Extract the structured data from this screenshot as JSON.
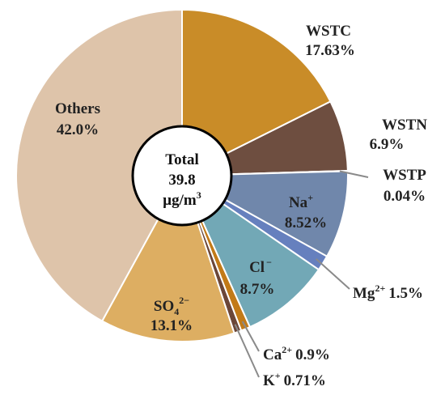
{
  "chart_data": {
    "type": "pie",
    "title": "",
    "center_label": {
      "line1": "Total",
      "line2": "39.8",
      "line3_base": "μg/m",
      "line3_sup": "3"
    },
    "slices": [
      {
        "key": "wstc",
        "label_base": "WSTC",
        "label_sup": "",
        "value_label": "17.63%",
        "value": 17.63,
        "color": "#C98C28"
      },
      {
        "key": "wstn",
        "label_base": "WSTN",
        "label_sup": "",
        "value_label": "6.9%",
        "value": 6.9,
        "color": "#6E4E40"
      },
      {
        "key": "wstp",
        "label_base": "WSTP",
        "label_sup": "",
        "value_label": "0.04%",
        "value": 0.04,
        "color": "#9A9A9A"
      },
      {
        "key": "na",
        "label_base": "Na",
        "label_sup": "+",
        "value_label": "8.52%",
        "value": 8.52,
        "color": "#7087AB"
      },
      {
        "key": "mg",
        "label_base": "Mg",
        "label_sup": "2+",
        "value_label": "1.5%",
        "value": 1.5,
        "color": "#6680BE"
      },
      {
        "key": "cl",
        "label_base": "Cl",
        "label_sup": "−",
        "value_label": "8.7%",
        "value": 8.7,
        "color": "#72A8B6"
      },
      {
        "key": "ca",
        "label_base": "Ca",
        "label_sup": "2+",
        "value_label": "0.9%",
        "value": 0.9,
        "color": "#C27A18"
      },
      {
        "key": "k",
        "label_base": "K",
        "label_sup": "+",
        "value_label": "0.71%",
        "value": 0.71,
        "color": "#6B4638"
      },
      {
        "key": "so4",
        "label_base": "SO",
        "label_sub": "4",
        "label_sup": "2−",
        "value_label": "13.1%",
        "value": 13.1,
        "color": "#DDAE62"
      },
      {
        "key": "others",
        "label_base": "Others",
        "label_sup": "",
        "value_label": "42.0%",
        "value": 42.0,
        "color": "#DEC4AA"
      }
    ]
  }
}
